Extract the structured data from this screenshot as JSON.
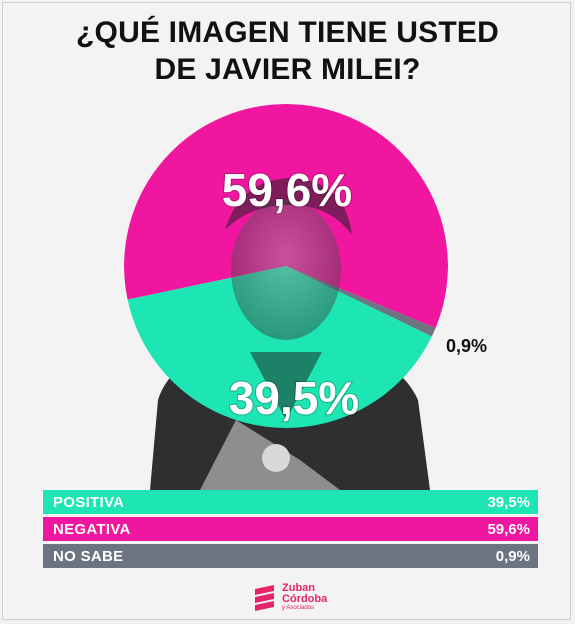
{
  "title_lines": [
    "¿QUÉ IMAGEN TIENE USTED",
    "DE JAVIER MILEI?"
  ],
  "chart_data": {
    "type": "pie",
    "categories": [
      "POSITIVA",
      "NEGATIVA",
      "NO SABE"
    ],
    "values": [
      39.5,
      59.6,
      0.9
    ],
    "value_labels": [
      "39,5%",
      "59,6%",
      "0,9%"
    ],
    "colors": [
      "#1de5b3",
      "#f0169f",
      "#6b7480"
    ]
  },
  "legend": [
    {
      "label": "POSITIVA",
      "value": "39,5%",
      "color": "#1de5b3"
    },
    {
      "label": "NEGATIVA",
      "value": "59,6%",
      "color": "#f0169f"
    },
    {
      "label": "NO SABE",
      "value": "0,9%",
      "color": "#6b7480"
    }
  ],
  "logo": {
    "line1": "Zuban",
    "line2": "Córdoba",
    "line3": "y Asociados",
    "color": "#e6246a"
  }
}
